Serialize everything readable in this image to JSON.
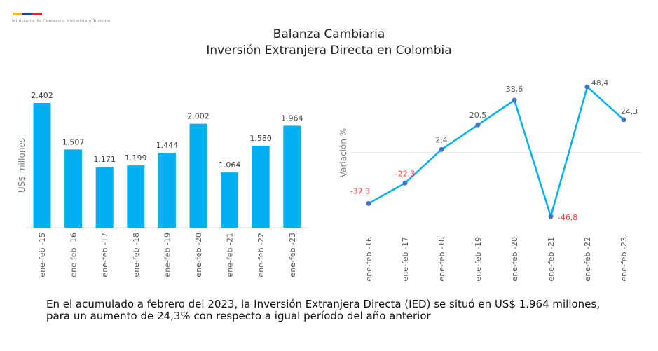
{
  "header": {
    "ministry": "Ministerio de Comercio, Industria y Turismo",
    "flag_colors": [
      "#f9b21b",
      "#1d4a94",
      "#e3242b"
    ]
  },
  "title": {
    "line1": "Balanza Cambiaria",
    "line2": "Inversión Extranjera Directa en Colombia"
  },
  "chart_data": [
    {
      "type": "bar",
      "ylabel": "US$ millones",
      "categories": [
        "ene-feb -15",
        "ene-feb -16",
        "ene-feb -17",
        "ene-feb -18",
        "ene-feb -19",
        "ene-feb -20",
        "ene-feb -21",
        "ene-feb -22",
        "ene-feb -23"
      ],
      "values": [
        2402,
        1507,
        1171,
        1199,
        1444,
        2002,
        1064,
        1580,
        1964
      ],
      "labels": [
        "2.402",
        "1.507",
        "1.171",
        "1.199",
        "1.444",
        "2.002",
        "1.064",
        "1.580",
        "1.964"
      ],
      "color": "#00b0f0",
      "ylim": [
        0,
        2402
      ],
      "grid": false
    },
    {
      "type": "line",
      "ylabel": "Variación %",
      "categories": [
        "ene-feb -16",
        "ene-feb -17",
        "ene-feb -18",
        "ene-feb -19",
        "ene-feb -20",
        "ene-feb -21",
        "ene-feb -22",
        "ene-feb -23"
      ],
      "values": [
        -37.3,
        -22.3,
        2.4,
        20.5,
        38.6,
        -46.8,
        48.4,
        24.3
      ],
      "labels": [
        "-37,3",
        "-22,3",
        "2,4",
        "20,5",
        "38,6",
        "-46,8",
        "48,4",
        "24,3"
      ],
      "line_color": "#00b0f0",
      "marker_color": "#4472c4",
      "negative_label_color": "#ff3b3b",
      "positive_label_color": "#595959",
      "zero_line": true
    }
  ],
  "caption": "En el acumulado a febrero del 2023, la Inversión Extranjera Directa (IED) se situó en US$ 1.964 millones, para un aumento de 24,3% con respecto a igual período del año anterior"
}
